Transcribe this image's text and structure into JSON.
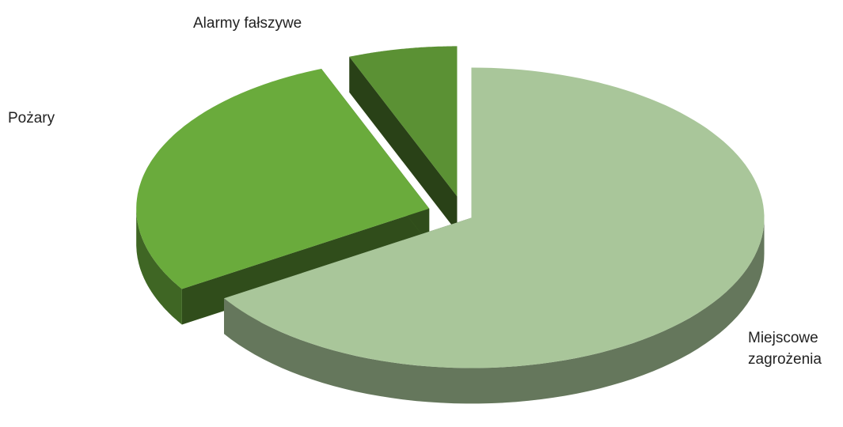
{
  "chart_data": {
    "type": "pie3d",
    "categories": [
      "Miejscowe zagrożenia",
      "Pożary",
      "Alarmy fałszywe"
    ],
    "values": [
      66,
      28,
      6
    ],
    "colors": [
      "#a9c69a",
      "#6aab3c",
      "#5b9134"
    ]
  }
}
